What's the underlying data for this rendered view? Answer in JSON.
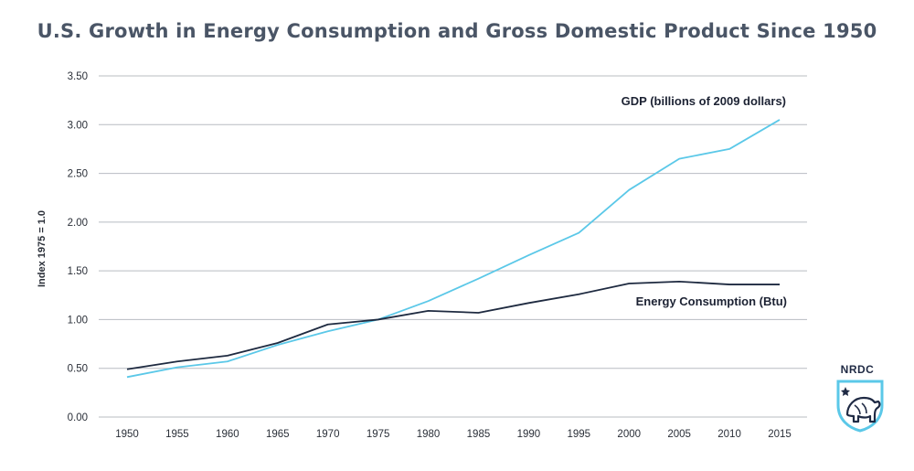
{
  "chart_data": {
    "type": "line",
    "title": "U.S. Growth in Energy Consumption and Gross Domestic Product Since 1950",
    "ylabel": "Index 1975 = 1.0",
    "xlabel": "",
    "ylim": [
      0,
      3.5
    ],
    "yticks": [
      "0.00",
      "0.50",
      "1.00",
      "1.50",
      "2.00",
      "2.50",
      "3.00",
      "3.50"
    ],
    "x": [
      "1950",
      "1955",
      "1960",
      "1965",
      "1970",
      "1975",
      "1980",
      "1985",
      "1990",
      "1995",
      "2000",
      "2005",
      "2010",
      "2015"
    ],
    "grid": true,
    "series": [
      {
        "name": "GDP (billions of 2009 dollars)",
        "color": "#5bc8e8",
        "values": [
          0.41,
          0.51,
          0.57,
          0.74,
          0.88,
          1.0,
          1.19,
          1.42,
          1.66,
          1.89,
          2.33,
          2.65,
          2.75,
          3.05
        ]
      },
      {
        "name": "Energy Consumption (Btu)",
        "color": "#1e2a40",
        "values": [
          0.49,
          0.57,
          0.63,
          0.76,
          0.95,
          1.0,
          1.09,
          1.07,
          1.17,
          1.26,
          1.37,
          1.39,
          1.36,
          1.36
        ]
      }
    ]
  },
  "logo": {
    "text": "NRDC",
    "icon": "bear-shield-icon",
    "color": "#1f2a44",
    "accent": "#5bc8e8"
  }
}
